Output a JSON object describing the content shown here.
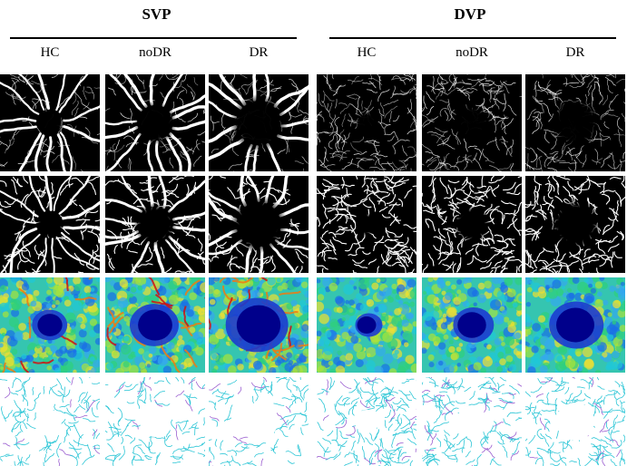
{
  "groups": [
    {
      "title": "SVP",
      "columns": [
        "HC",
        "noDR",
        "DR"
      ]
    },
    {
      "title": "DVP",
      "columns": [
        "HC",
        "noDR",
        "DR"
      ]
    }
  ],
  "rows": [
    {
      "kind": "grayscale-angiogram",
      "colors": {
        "vessel": "#ffffff",
        "background": "#000000"
      }
    },
    {
      "kind": "binarized-vessel-map",
      "colors": {
        "vessel": "#ffffff",
        "background": "#000000"
      }
    },
    {
      "kind": "vessel-density-heatmap",
      "colors": {
        "low": "#00008b",
        "mid": "#1fc8d8",
        "high": "#d01010"
      }
    },
    {
      "kind": "skeleton-map",
      "colors": {
        "skeleton": "#2cc6d6",
        "branch": "#9b5fd0",
        "background": "#ffffff"
      }
    }
  ]
}
